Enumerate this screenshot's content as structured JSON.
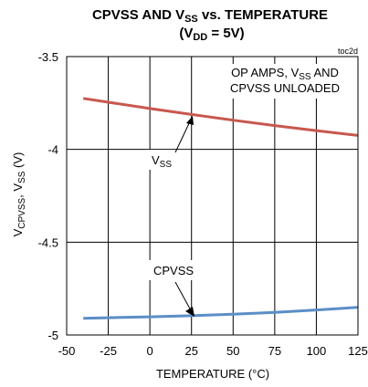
{
  "chart_data": {
    "type": "line",
    "title_line1_main": "CPVSS AND V",
    "title_line1_sub": "SS",
    "title_line1_rest": " vs. TEMPERATURE",
    "title_line2_pre": "(V",
    "title_line2_sub": "DD",
    "title_line2_rest": " = 5V)",
    "figure_id": "toc2d",
    "xlabel": "TEMPERATURE (°C)",
    "ylabel_main1": "V",
    "ylabel_sub1": "CPVSS",
    "ylabel_mid": ", V",
    "ylabel_sub2": "SS",
    "ylabel_rest": " (V)",
    "xlim": [
      -50,
      125
    ],
    "ylim": [
      -5,
      -3.5
    ],
    "xticks": [
      -50,
      -25,
      0,
      25,
      50,
      75,
      100,
      125
    ],
    "xtick_labels": [
      "-50",
      "-25",
      "0",
      "25",
      "50",
      "75",
      "100",
      "125"
    ],
    "yticks": [
      -3.5,
      -4,
      -4.5,
      -5
    ],
    "ytick_labels": [
      "-3.5",
      "-4",
      "-4.5",
      "-5"
    ],
    "grid": true,
    "series": [
      {
        "name_main": "V",
        "name_sub": "SS",
        "color": "#c8584e",
        "x": [
          -40,
          -25,
          0,
          25,
          50,
          75,
          100,
          125
        ],
        "y": [
          -3.725,
          -3.746,
          -3.78,
          -3.812,
          -3.843,
          -3.872,
          -3.899,
          -3.925
        ]
      },
      {
        "name": "CPVSS",
        "color": "#5b8ec6",
        "x": [
          -40,
          -25,
          0,
          25,
          50,
          75,
          100,
          125
        ],
        "y": [
          -4.91,
          -4.907,
          -4.902,
          -4.896,
          -4.888,
          -4.878,
          -4.865,
          -4.851
        ]
      }
    ],
    "annotation_line1": "OP AMPS, V",
    "annotation_sub": "SS",
    "annotation_line1_rest": " AND",
    "annotation_line2": "CPVSS UNLOADED"
  }
}
